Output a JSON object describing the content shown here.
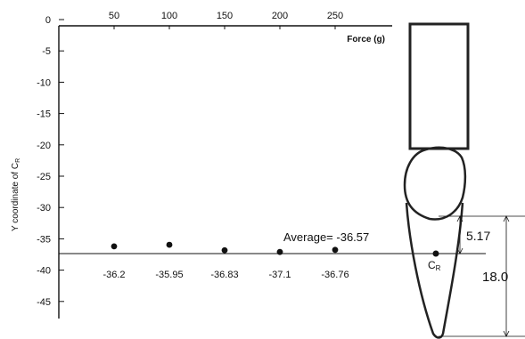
{
  "chart_data": {
    "type": "scatter",
    "ylabel": "Y coordinate of C",
    "ylabel_subscript": "R",
    "xlabel": "Force (g)",
    "x_ticks": [
      "50",
      "100",
      "150",
      "200",
      "250"
    ],
    "y_ticks": [
      "0",
      "-5",
      "-10",
      "-15",
      "-20",
      "-25",
      "-30",
      "-35",
      "-40",
      "-45"
    ],
    "ylim": [
      0,
      -45
    ],
    "x_axis_position": "top",
    "grid": false,
    "series": [
      {
        "points": [
          {
            "x": 50,
            "y": -36.2,
            "label": "-36.2"
          },
          {
            "x": 100,
            "y": -35.95,
            "label": "-35.95"
          },
          {
            "x": 150,
            "y": -36.83,
            "label": "-36.83"
          },
          {
            "x": 200,
            "y": -37.1,
            "label": "-37.1"
          },
          {
            "x": 250,
            "y": -36.76,
            "label": "-36.76"
          }
        ]
      }
    ],
    "average": {
      "value": -36.57,
      "label": "Average= -36.57"
    },
    "tooth_diagram": {
      "center_label": "C",
      "center_subscript": "R",
      "dim_upper": "5.17",
      "dim_total": "18.0"
    }
  }
}
